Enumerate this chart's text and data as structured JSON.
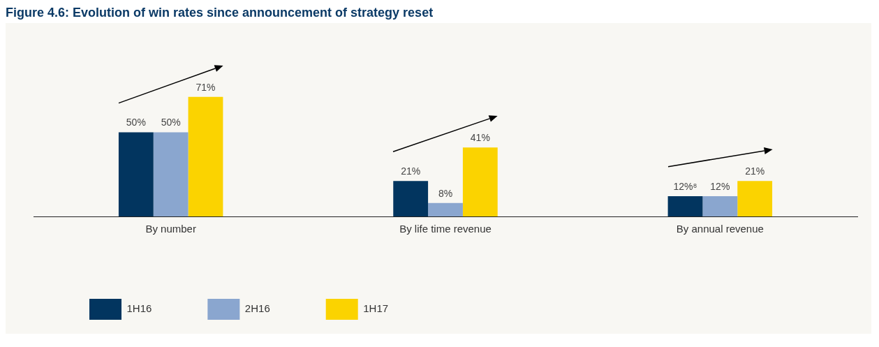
{
  "chart_data": {
    "type": "bar",
    "title": "Figure 4.6: Evolution of win rates since announcement of strategy reset",
    "categories": [
      "By number",
      "By life time revenue",
      "By annual revenue"
    ],
    "series": [
      {
        "name": "1H16",
        "color": "#02355f",
        "values": [
          50,
          21,
          12
        ],
        "value_labels": [
          "50%",
          "21%",
          "12%⁸"
        ]
      },
      {
        "name": "2H16",
        "color": "#8aa6cf",
        "values": [
          50,
          8,
          12
        ],
        "value_labels": [
          "50%",
          "8%",
          "12%"
        ]
      },
      {
        "name": "1H17",
        "color": "#fbd300",
        "values": [
          71,
          41,
          21
        ],
        "value_labels": [
          "71%",
          "41%",
          "21%"
        ]
      }
    ],
    "legend": "bottom left",
    "grid": false
  }
}
